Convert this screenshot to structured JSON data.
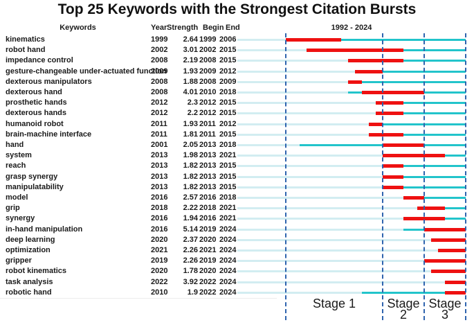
{
  "title": "Top 25 Keywords with the Strongest Citation Bursts",
  "header": {
    "keywords": "Keywords",
    "year": "Year",
    "strength": "Strength",
    "begin": "Begin",
    "end": "End",
    "range": "1992 - 2024"
  },
  "chart_data": {
    "type": "table",
    "title": "Top 25 Keywords with the Strongest Citation Bursts",
    "description": "CiteSpace-style citation burst timeline: pale segment = before keyword appears, teal segment = keyword active, red segment = burst period",
    "columns": [
      "Keywords",
      "Year",
      "Strength",
      "Begin",
      "End"
    ],
    "axis": {
      "min_year": 1992,
      "max_year_exclusive": 2025,
      "label": "1992 - 2024"
    },
    "rows": [
      {
        "keyword": "kinematics",
        "year": 1999,
        "strength": "2.64",
        "begin": 1999,
        "end": 2006
      },
      {
        "keyword": "robot hand",
        "year": 2002,
        "strength": "3.01",
        "begin": 2002,
        "end": 2015
      },
      {
        "keyword": "impedance control",
        "year": 2008,
        "strength": "2.19",
        "begin": 2008,
        "end": 2015
      },
      {
        "keyword": "gesture-changeable under-actuated function",
        "year": 2009,
        "strength": "1.93",
        "begin": 2009,
        "end": 2012
      },
      {
        "keyword": "dexterous manipulators",
        "year": 2008,
        "strength": "1.88",
        "begin": 2008,
        "end": 2009
      },
      {
        "keyword": "dexterous hand",
        "year": 2008,
        "strength": "4.01",
        "begin": 2010,
        "end": 2018
      },
      {
        "keyword": "prosthetic hands",
        "year": 2012,
        "strength": "2.3",
        "begin": 2012,
        "end": 2015
      },
      {
        "keyword": "dexterous hands",
        "year": 2012,
        "strength": "2.2",
        "begin": 2012,
        "end": 2015
      },
      {
        "keyword": "humanoid robot",
        "year": 2011,
        "strength": "1.93",
        "begin": 2011,
        "end": 2012
      },
      {
        "keyword": "brain-machine interface",
        "year": 2011,
        "strength": "1.81",
        "begin": 2011,
        "end": 2015
      },
      {
        "keyword": "hand",
        "year": 2001,
        "strength": "2.05",
        "begin": 2013,
        "end": 2018
      },
      {
        "keyword": "system",
        "year": 2013,
        "strength": "1.98",
        "begin": 2013,
        "end": 2021
      },
      {
        "keyword": "reach",
        "year": 2013,
        "strength": "1.82",
        "begin": 2013,
        "end": 2015
      },
      {
        "keyword": "grasp synergy",
        "year": 2013,
        "strength": "1.82",
        "begin": 2013,
        "end": 2015
      },
      {
        "keyword": "manipulatability",
        "year": 2013,
        "strength": "1.82",
        "begin": 2013,
        "end": 2015
      },
      {
        "keyword": "model",
        "year": 2016,
        "strength": "2.57",
        "begin": 2016,
        "end": 2018
      },
      {
        "keyword": "grip",
        "year": 2018,
        "strength": "2.22",
        "begin": 2018,
        "end": 2021
      },
      {
        "keyword": "synergy",
        "year": 2016,
        "strength": "1.94",
        "begin": 2016,
        "end": 2021
      },
      {
        "keyword": "in-hand manipulation",
        "year": 2016,
        "strength": "5.14",
        "begin": 2019,
        "end": 2024
      },
      {
        "keyword": "deep learning",
        "year": 2020,
        "strength": "2.37",
        "begin": 2020,
        "end": 2024
      },
      {
        "keyword": "optimization",
        "year": 2021,
        "strength": "2.26",
        "begin": 2021,
        "end": 2024
      },
      {
        "keyword": "gripper",
        "year": 2019,
        "strength": "2.26",
        "begin": 2019,
        "end": 2024
      },
      {
        "keyword": "robot kinematics",
        "year": 2020,
        "strength": "1.78",
        "begin": 2020,
        "end": 2024
      },
      {
        "keyword": "task analysis",
        "year": 2022,
        "strength": "3.92",
        "begin": 2022,
        "end": 2024
      },
      {
        "keyword": "robotic hand",
        "year": 2010,
        "strength": "1.9",
        "begin": 2022,
        "end": 2024
      }
    ],
    "dividers": [
      1999,
      2013,
      2019,
      2025
    ],
    "stages": [
      {
        "label": "Stage 1",
        "lines": [
          "Stage 1"
        ],
        "from": 1999,
        "to": 2013
      },
      {
        "label": "Stage 2",
        "lines": [
          "Stage",
          "2"
        ],
        "from": 2013,
        "to": 2019
      },
      {
        "label": "Stage 3",
        "lines": [
          "Stage",
          "3"
        ],
        "from": 2019,
        "to": 2025
      }
    ],
    "colors": {
      "pre_period": "#d2edf1",
      "active_period": "#22c4cb",
      "burst": "#ee1111",
      "divider": "#2e63ae",
      "text": "#1a1a1a"
    },
    "legend_position": "none",
    "grid": false
  }
}
